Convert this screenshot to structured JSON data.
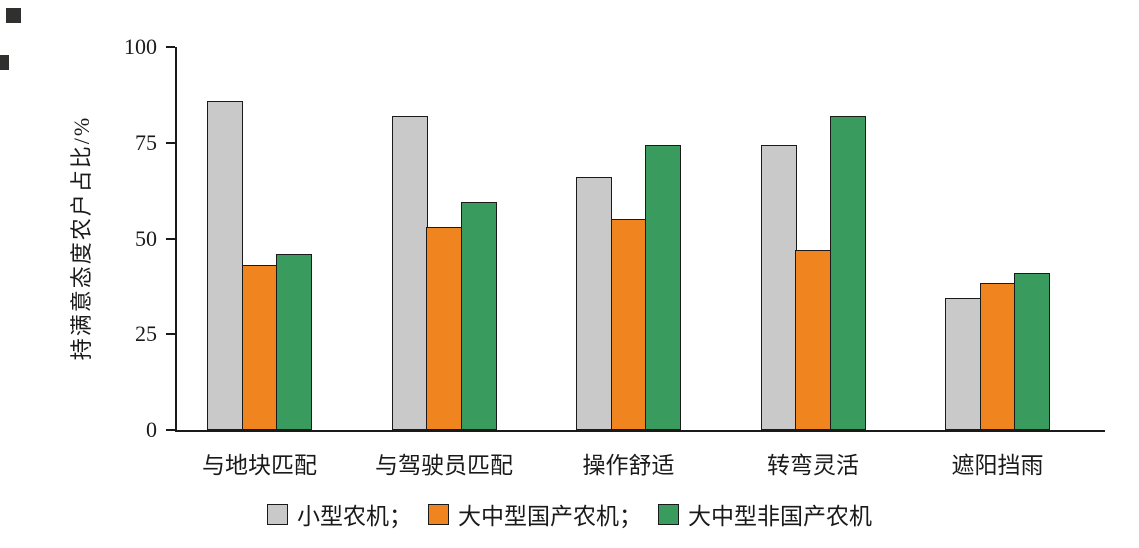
{
  "chart_data": {
    "type": "bar",
    "ylabel": "持满意态度农户占比/%",
    "xlabel": "",
    "ylim": [
      0,
      100
    ],
    "yticks": [
      0,
      25,
      50,
      75,
      100
    ],
    "categories": [
      "与地块匹配",
      "与驾驶员匹配",
      "操作舒适",
      "转弯灵活",
      "遮阳挡雨"
    ],
    "series": [
      {
        "name": "小型农机",
        "color": "#c9c9c9",
        "values": [
          86,
          82,
          66,
          74.5,
          34.5
        ]
      },
      {
        "name": "大中型国产农机",
        "color": "#f0841f",
        "values": [
          43,
          53,
          55,
          47,
          38.5
        ]
      },
      {
        "name": "大中型非国产农机",
        "color": "#3a9b5f",
        "values": [
          46,
          59.5,
          74.5,
          82,
          41
        ]
      }
    ],
    "legend_separator": "；",
    "legend_position": "bottom",
    "grid": false,
    "bar_border_color": "#1a1a1a"
  }
}
